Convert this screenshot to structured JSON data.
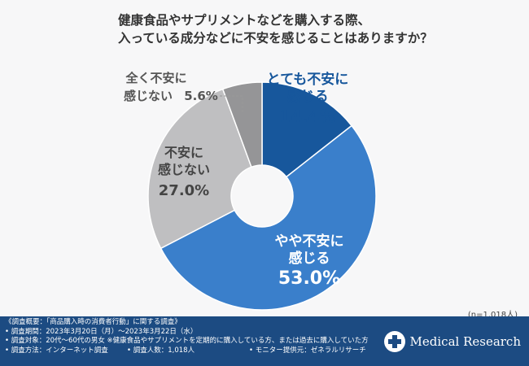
{
  "title": {
    "line1": "健康食品やサプリメントなどを購入する際、",
    "line2": "入っている成分などに不安を感じることはありますか？"
  },
  "chart_data": {
    "type": "pie",
    "title": "健康食品やサプリメントなどを購入する際、入っている成分などに不安を感じることはありますか？",
    "donut": true,
    "slices": [
      {
        "label": "とても不安に感じる",
        "line1": "とても不安に",
        "line2": "感じる",
        "value": 14.4,
        "value_text": "14.4%",
        "color": "#17579c"
      },
      {
        "label": "やや不安に感じる",
        "line1": "やや不安に",
        "line2": "感じる",
        "value": 53.0,
        "value_text": "53.0%",
        "color": "#3a7fcb"
      },
      {
        "label": "不安に感じない",
        "line1": "不安に",
        "line2": "感じない",
        "value": 27.0,
        "value_text": "27.0%",
        "color": "#bfbfc1"
      },
      {
        "label": "全く不安に感じない",
        "line1": "全く不安に",
        "line2": "感じない",
        "value": 5.6,
        "value_text": "5.6%",
        "color": "#959597"
      }
    ]
  },
  "sample_size": "(n=1,018人)",
  "footer": {
    "heading": "《調査概要：「商品購入時の消費者行動」に関する調査》",
    "period": "• 調査期間：2023年3月20日（月）〜2023年3月22日（水）",
    "target": "• 調査対象：20代〜60代の男女 ※健康食品やサプリメントを定期的に購入している方、または過去に購入していた方",
    "method": "• 調査方法：インターネット調査",
    "count": "• 調査人数：1,018人",
    "provider": "• モニター提供元：ゼネラルリサーチ",
    "brand": "Medical Research",
    "brand_color": "#1c4b82"
  }
}
